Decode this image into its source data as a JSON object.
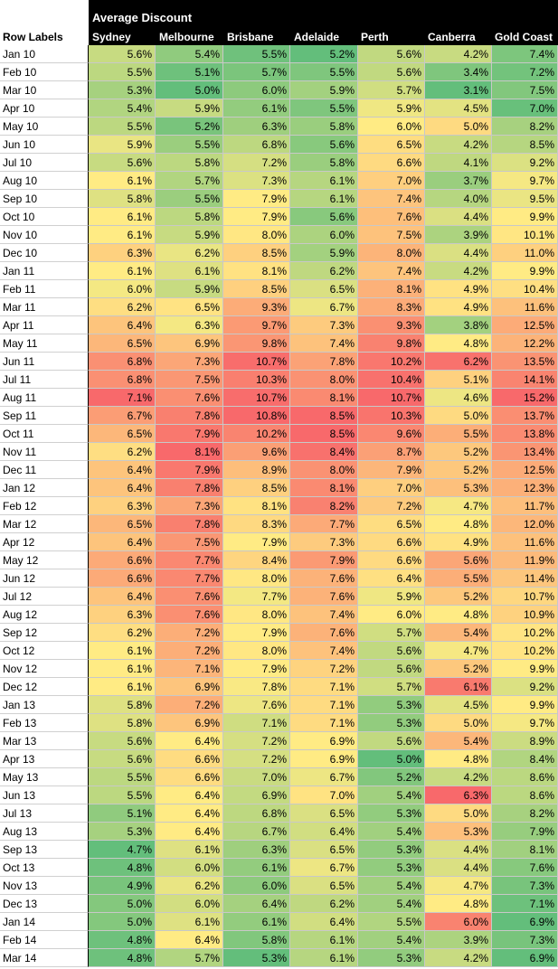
{
  "chart_data": {
    "type": "heatmap",
    "title": "Average Discount",
    "row_header": "Row Labels",
    "columns": [
      "Sydney",
      "Melbourne",
      "Brisbane",
      "Adelaide",
      "Perth",
      "Canberra",
      "Gold Coast"
    ],
    "rows": [
      "Jan 10",
      "Feb 10",
      "Mar 10",
      "Apr 10",
      "May 10",
      "Jun 10",
      "Jul 10",
      "Aug 10",
      "Sep 10",
      "Oct 10",
      "Nov 10",
      "Dec 10",
      "Jan 11",
      "Feb 11",
      "Mar 11",
      "Apr 11",
      "May 11",
      "Jun 11",
      "Jul 11",
      "Aug 11",
      "Sep 11",
      "Oct 11",
      "Nov 11",
      "Dec 11",
      "Jan 12",
      "Feb 12",
      "Mar 12",
      "Apr 12",
      "May 12",
      "Jun 12",
      "Jul 12",
      "Aug 12",
      "Sep 12",
      "Oct 12",
      "Nov 12",
      "Dec 12",
      "Jan 13",
      "Feb 13",
      "Mar 13",
      "Apr 13",
      "May 13",
      "Jun 13",
      "Jul 13",
      "Aug 13",
      "Sep 13",
      "Oct 13",
      "Nov 13",
      "Dec 13",
      "Jan 14",
      "Feb 14",
      "Mar 14"
    ],
    "values": [
      [
        "5.6%",
        "5.4%",
        "5.5%",
        "5.2%",
        "5.6%",
        "4.2%",
        "7.4%"
      ],
      [
        "5.5%",
        "5.1%",
        "5.7%",
        "5.5%",
        "5.6%",
        "3.4%",
        "7.2%"
      ],
      [
        "5.3%",
        "5.0%",
        "6.0%",
        "5.9%",
        "5.7%",
        "3.1%",
        "7.5%"
      ],
      [
        "5.4%",
        "5.9%",
        "6.1%",
        "5.5%",
        "5.9%",
        "4.5%",
        "7.0%"
      ],
      [
        "5.5%",
        "5.2%",
        "6.3%",
        "5.8%",
        "6.0%",
        "5.0%",
        "8.2%"
      ],
      [
        "5.9%",
        "5.5%",
        "6.8%",
        "5.6%",
        "6.5%",
        "4.2%",
        "8.5%"
      ],
      [
        "5.6%",
        "5.8%",
        "7.2%",
        "5.8%",
        "6.6%",
        "4.1%",
        "9.2%"
      ],
      [
        "6.1%",
        "5.7%",
        "7.3%",
        "6.1%",
        "7.0%",
        "3.7%",
        "9.7%"
      ],
      [
        "5.8%",
        "5.5%",
        "7.9%",
        "6.1%",
        "7.4%",
        "4.0%",
        "9.5%"
      ],
      [
        "6.1%",
        "5.8%",
        "7.9%",
        "5.6%",
        "7.6%",
        "4.4%",
        "9.9%"
      ],
      [
        "6.1%",
        "5.9%",
        "8.0%",
        "6.0%",
        "7.5%",
        "3.9%",
        "10.1%"
      ],
      [
        "6.3%",
        "6.2%",
        "8.5%",
        "5.9%",
        "8.0%",
        "4.4%",
        "11.0%"
      ],
      [
        "6.1%",
        "6.1%",
        "8.1%",
        "6.2%",
        "7.4%",
        "4.2%",
        "9.9%"
      ],
      [
        "6.0%",
        "5.9%",
        "8.5%",
        "6.5%",
        "8.1%",
        "4.9%",
        "10.4%"
      ],
      [
        "6.2%",
        "6.5%",
        "9.3%",
        "6.7%",
        "8.3%",
        "4.9%",
        "11.6%"
      ],
      [
        "6.4%",
        "6.3%",
        "9.7%",
        "7.3%",
        "9.3%",
        "3.8%",
        "12.5%"
      ],
      [
        "6.5%",
        "6.9%",
        "9.8%",
        "7.4%",
        "9.8%",
        "4.8%",
        "12.2%"
      ],
      [
        "6.8%",
        "7.3%",
        "10.7%",
        "7.8%",
        "10.2%",
        "6.2%",
        "13.5%"
      ],
      [
        "6.8%",
        "7.5%",
        "10.3%",
        "8.0%",
        "10.4%",
        "5.1%",
        "14.1%"
      ],
      [
        "7.1%",
        "7.6%",
        "10.7%",
        "8.1%",
        "10.7%",
        "4.6%",
        "15.2%"
      ],
      [
        "6.7%",
        "7.8%",
        "10.8%",
        "8.5%",
        "10.3%",
        "5.0%",
        "13.7%"
      ],
      [
        "6.5%",
        "7.9%",
        "10.2%",
        "8.5%",
        "9.6%",
        "5.5%",
        "13.8%"
      ],
      [
        "6.2%",
        "8.1%",
        "9.6%",
        "8.4%",
        "8.7%",
        "5.2%",
        "13.4%"
      ],
      [
        "6.4%",
        "7.9%",
        "8.9%",
        "8.0%",
        "7.9%",
        "5.2%",
        "12.5%"
      ],
      [
        "6.4%",
        "7.8%",
        "8.5%",
        "8.1%",
        "7.0%",
        "5.3%",
        "12.3%"
      ],
      [
        "6.3%",
        "7.3%",
        "8.1%",
        "8.2%",
        "7.2%",
        "4.7%",
        "11.7%"
      ],
      [
        "6.5%",
        "7.8%",
        "8.3%",
        "7.7%",
        "6.5%",
        "4.8%",
        "12.0%"
      ],
      [
        "6.4%",
        "7.5%",
        "7.9%",
        "7.3%",
        "6.6%",
        "4.9%",
        "11.6%"
      ],
      [
        "6.6%",
        "7.7%",
        "8.4%",
        "7.9%",
        "6.6%",
        "5.6%",
        "11.9%"
      ],
      [
        "6.6%",
        "7.7%",
        "8.0%",
        "7.6%",
        "6.4%",
        "5.5%",
        "11.4%"
      ],
      [
        "6.4%",
        "7.6%",
        "7.7%",
        "7.6%",
        "5.9%",
        "5.2%",
        "10.7%"
      ],
      [
        "6.3%",
        "7.6%",
        "8.0%",
        "7.4%",
        "6.0%",
        "4.8%",
        "10.9%"
      ],
      [
        "6.2%",
        "7.2%",
        "7.9%",
        "7.6%",
        "5.7%",
        "5.4%",
        "10.2%"
      ],
      [
        "6.1%",
        "7.2%",
        "8.0%",
        "7.4%",
        "5.6%",
        "4.7%",
        "10.2%"
      ],
      [
        "6.1%",
        "7.1%",
        "7.9%",
        "7.2%",
        "5.6%",
        "5.2%",
        "9.9%"
      ],
      [
        "6.1%",
        "6.9%",
        "7.8%",
        "7.1%",
        "5.7%",
        "6.1%",
        "9.2%"
      ],
      [
        "5.8%",
        "7.2%",
        "7.6%",
        "7.1%",
        "5.3%",
        "4.5%",
        "9.9%"
      ],
      [
        "5.8%",
        "6.9%",
        "7.1%",
        "7.1%",
        "5.3%",
        "5.0%",
        "9.7%"
      ],
      [
        "5.6%",
        "6.4%",
        "7.2%",
        "6.9%",
        "5.6%",
        "5.4%",
        "8.9%"
      ],
      [
        "5.6%",
        "6.6%",
        "7.2%",
        "6.9%",
        "5.0%",
        "4.8%",
        "8.4%"
      ],
      [
        "5.5%",
        "6.6%",
        "7.0%",
        "6.7%",
        "5.2%",
        "4.2%",
        "8.6%"
      ],
      [
        "5.5%",
        "6.4%",
        "6.9%",
        "7.0%",
        "5.4%",
        "6.3%",
        "8.6%"
      ],
      [
        "5.1%",
        "6.4%",
        "6.8%",
        "6.5%",
        "5.3%",
        "5.0%",
        "8.2%"
      ],
      [
        "5.3%",
        "6.4%",
        "6.7%",
        "6.4%",
        "5.4%",
        "5.3%",
        "7.9%"
      ],
      [
        "4.7%",
        "6.1%",
        "6.3%",
        "6.5%",
        "5.3%",
        "4.4%",
        "8.1%"
      ],
      [
        "4.8%",
        "6.0%",
        "6.1%",
        "6.7%",
        "5.3%",
        "4.4%",
        "7.6%"
      ],
      [
        "4.9%",
        "6.2%",
        "6.0%",
        "6.5%",
        "5.4%",
        "4.7%",
        "7.3%"
      ],
      [
        "5.0%",
        "6.0%",
        "6.4%",
        "6.2%",
        "5.4%",
        "4.8%",
        "7.1%"
      ],
      [
        "5.0%",
        "6.1%",
        "6.1%",
        "6.4%",
        "5.5%",
        "6.0%",
        "6.9%"
      ],
      [
        "4.8%",
        "6.4%",
        "5.8%",
        "6.1%",
        "5.4%",
        "3.9%",
        "7.3%"
      ],
      [
        "4.8%",
        "5.7%",
        "5.3%",
        "6.1%",
        "5.3%",
        "4.2%",
        "6.9%"
      ]
    ],
    "color_scale": {
      "low": "#63be7b",
      "mid": "#ffeb84",
      "high": "#f8696b"
    }
  }
}
